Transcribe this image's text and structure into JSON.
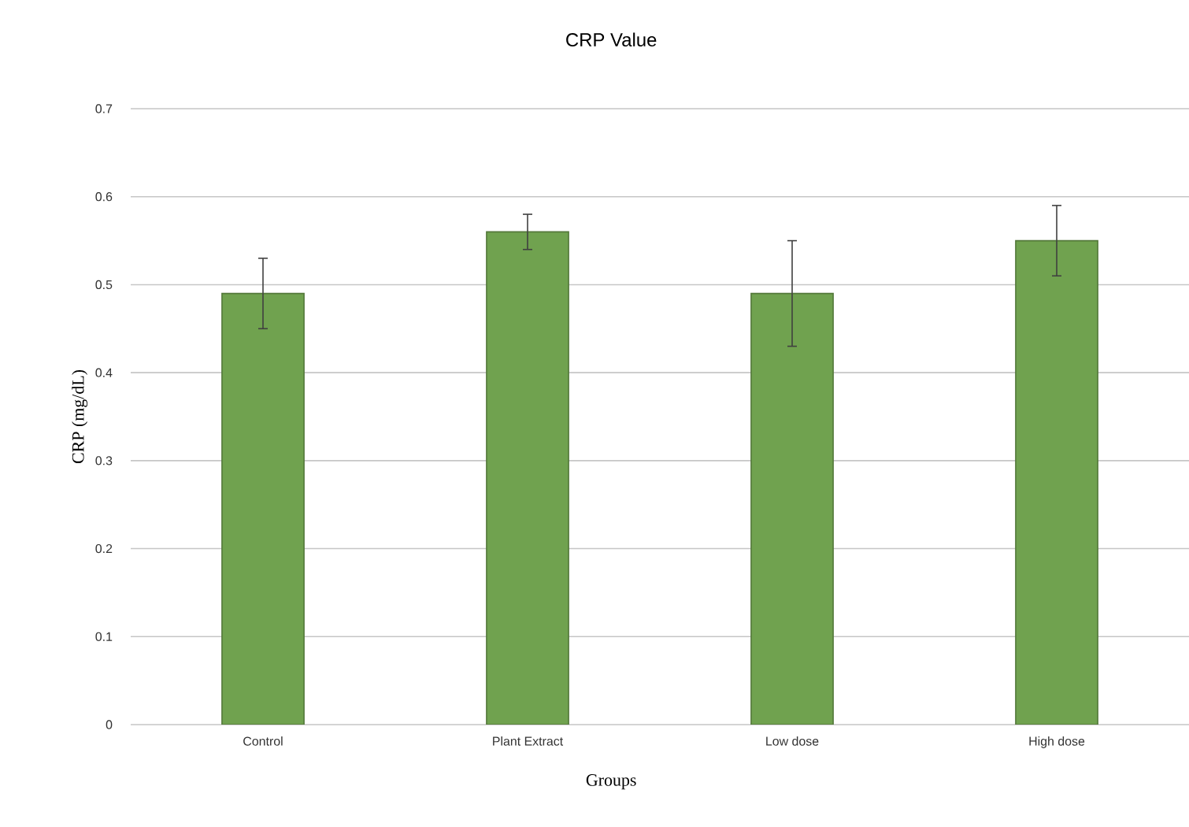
{
  "chart_data": {
    "type": "bar",
    "title": "CRP Value",
    "xlabel": "Groups",
    "ylabel": "CRP (mg/dL)",
    "categories": [
      "Control",
      "Plant Extract",
      "Low dose",
      "High dose"
    ],
    "values": [
      0.49,
      0.56,
      0.49,
      0.55
    ],
    "errors": [
      0.04,
      0.02,
      0.06,
      0.04
    ],
    "color": "#70a24f",
    "ylim": [
      0,
      0.7
    ],
    "yticks": [
      0,
      0.1,
      0.2,
      0.3,
      0.4,
      0.5,
      0.6,
      0.7
    ],
    "grid": "y"
  }
}
